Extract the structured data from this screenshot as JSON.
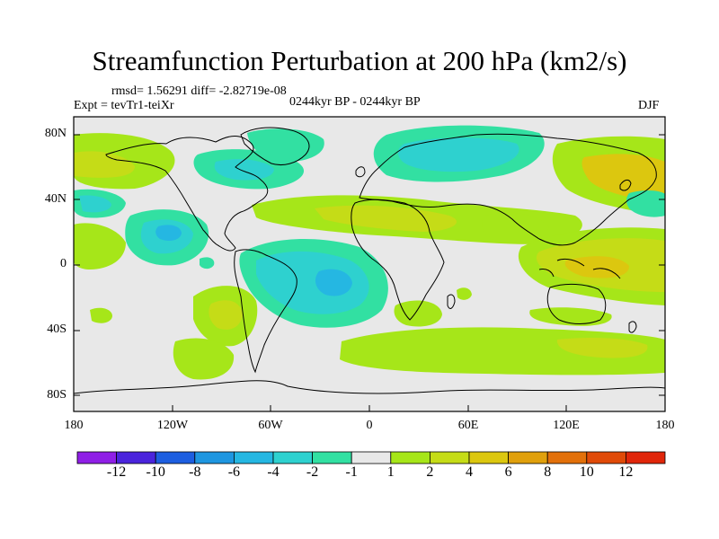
{
  "title": "Streamfunction Perturbation at 200 hPa (km2/s)",
  "stats": "rmsd= 1.56291 diff= -2.82719e-08",
  "experiment": "Expt = tevTr1-teiXr",
  "period": "0244kyr BP - 0244kyr BP",
  "season": "DJF",
  "lat_labels": [
    "80N",
    "40N",
    "0",
    "40S",
    "80S"
  ],
  "lon_labels": [
    "180",
    "120W",
    "60W",
    "0",
    "60E",
    "120E",
    "180"
  ],
  "colorbar": {
    "labels": [
      "-12",
      "-10",
      "-8",
      "-6",
      "-4",
      "-2",
      "-1",
      "1",
      "2",
      "4",
      "6",
      "8",
      "10",
      "12"
    ],
    "colors": [
      "#8f1fe6",
      "#4a24dc",
      "#1d5ee0",
      "#1e96e0",
      "#25b7e2",
      "#2ed1cf",
      "#32e0a2",
      "#e8e8e8",
      "#a6e619",
      "#c5dc17",
      "#dcc70f",
      "#e0a00c",
      "#e2700a",
      "#e04a08",
      "#e0260a"
    ]
  },
  "colors": {
    "land_mask": "#e8e8e8",
    "neg1": "#32e0a2",
    "neg2": "#2ed1cf",
    "neg3": "#25b7e2",
    "pos1": "#a6e619",
    "pos2": "#c5dc17",
    "pos3": "#dcc70f",
    "coast": "#000000"
  },
  "map_fields": [
    {
      "name": "n-pacific-west-cyan",
      "level": "neg2"
    },
    {
      "name": "n-atlantic-north-cyan",
      "level": "neg2"
    },
    {
      "name": "eurasia-cyan",
      "level": "neg2"
    },
    {
      "name": "tropical-atlantic-cyan",
      "level": "neg2"
    },
    {
      "name": "tropical-east-pacific-cyan",
      "level": "neg3"
    },
    {
      "name": "atlantic-core-cyan",
      "level": "neg3"
    },
    {
      "name": "n-pacific-east-green",
      "level": "pos1"
    },
    {
      "name": "subtropical-atlantic-green",
      "level": "pos1"
    },
    {
      "name": "maritime-continent-yellow",
      "level": "pos2"
    },
    {
      "name": "s-pacific-green",
      "level": "pos1"
    },
    {
      "name": "s-indian-green",
      "level": "pos1"
    },
    {
      "name": "southern-ocean-green",
      "level": "pos1"
    }
  ]
}
